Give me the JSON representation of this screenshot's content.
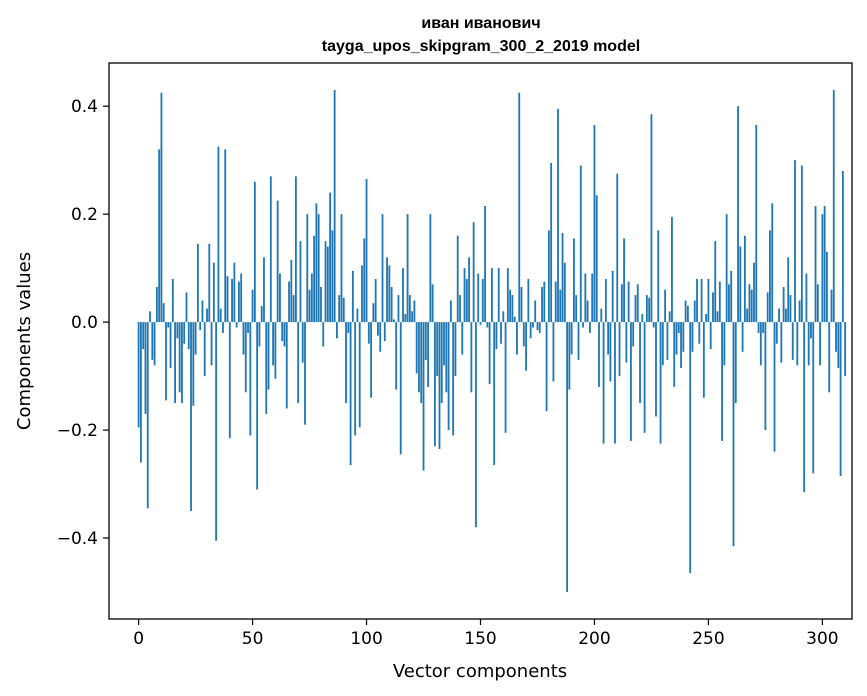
{
  "chart_data": {
    "type": "bar",
    "title": "иван иванович",
    "subtitle": "tayga_upos_skipgram_300_2_2019 model",
    "xlabel": "Vector components",
    "ylabel": "Components values",
    "xlim": [
      -13,
      313
    ],
    "ylim": [
      -0.55,
      0.48
    ],
    "x_ticks": [
      0,
      50,
      100,
      150,
      200,
      250,
      300
    ],
    "x_tick_labels": [
      "0",
      "50",
      "100",
      "150",
      "200",
      "250",
      "300"
    ],
    "y_ticks": [
      -0.4,
      -0.2,
      0.0,
      0.2,
      0.4
    ],
    "y_tick_labels": [
      "−0.4",
      "−0.2",
      "0.0",
      "0.2",
      "0.4"
    ],
    "bar_color": "#1f77b4",
    "values": [
      -0.195,
      -0.26,
      -0.05,
      -0.17,
      -0.345,
      0.02,
      -0.07,
      -0.08,
      0.065,
      0.32,
      0.425,
      0.035,
      -0.145,
      -0.01,
      -0.085,
      0.08,
      -0.15,
      -0.03,
      -0.13,
      -0.15,
      -0.04,
      0.055,
      -0.05,
      -0.35,
      -0.155,
      -0.06,
      0.145,
      -0.015,
      0.04,
      -0.1,
      0.025,
      0.145,
      -0.08,
      0.11,
      -0.405,
      0.325,
      0.025,
      -0.02,
      0.32,
      0.085,
      -0.215,
      0.08,
      0.11,
      -0.01,
      0.075,
      0.09,
      -0.06,
      -0.13,
      -0.02,
      -0.21,
      0.06,
      0.26,
      -0.31,
      -0.045,
      0.03,
      0.12,
      -0.17,
      -0.125,
      0.27,
      -0.08,
      -0.105,
      0.225,
      0.09,
      -0.035,
      -0.045,
      -0.16,
      0.075,
      0.115,
      0.05,
      0.27,
      -0.15,
      0.15,
      -0.075,
      -0.19,
      0.2,
      0.06,
      0.09,
      0.16,
      0.22,
      0.2,
      0.065,
      -0.045,
      0.15,
      0.14,
      0.24,
      0.17,
      0.43,
      -0.03,
      0.05,
      0.2,
      0.045,
      -0.15,
      -0.02,
      -0.265,
      0.095,
      -0.21,
      0.025,
      -0.195,
      0.105,
      0.155,
      0.265,
      -0.04,
      -0.14,
      0.035,
      0.08,
      -0.025,
      -0.055,
      0.2,
      -0.035,
      0.12,
      0.105,
      0.065,
      0.005,
      -0.125,
      0.05,
      -0.245,
      0.1,
      0.015,
      0.2,
      0.05,
      0.02,
      0.04,
      -0.095,
      -0.13,
      -0.15,
      -0.275,
      -0.07,
      -0.12,
      0.2,
      0.07,
      -0.23,
      -0.1,
      -0.235,
      -0.15,
      -0.08,
      -0.13,
      -0.2,
      0.04,
      -0.21,
      -0.1,
      0.16,
      0.05,
      -0.06,
      0.1,
      0.08,
      0.12,
      -0.13,
      0.185,
      -0.38,
      0.09,
      -0.005,
      0.08,
      0.215,
      -0.01,
      -0.115,
      0.1,
      -0.265,
      -0.05,
      0.1,
      -0.04,
      0.02,
      -0.205,
      0.1,
      0.06,
      0.05,
      0.01,
      -0.06,
      0.425,
      0.065,
      -0.045,
      -0.09,
      0.08,
      -0.03,
      -0.01,
      0.04,
      -0.015,
      -0.02,
      0.065,
      0.075,
      -0.165,
      0.17,
      0.295,
      -0.11,
      0.075,
      0.395,
      0.06,
      0.165,
      0.11,
      -0.5,
      -0.125,
      -0.06,
      0.155,
      0.05,
      -0.07,
      0.29,
      -0.01,
      0.09,
      0.04,
      -0.02,
      0.09,
      0.365,
      0.235,
      -0.12,
      0.025,
      -0.225,
      0.08,
      -0.06,
      -0.11,
      0.095,
      -0.225,
      0.275,
      -0.1,
      0.07,
      0.155,
      -0.075,
      0.075,
      -0.22,
      -0.045,
      0.05,
      0.07,
      -0.15,
      0.015,
      -0.205,
      0.05,
      0.045,
      0.385,
      -0.01,
      -0.175,
      0.17,
      -0.225,
      -0.08,
      0.06,
      -0.07,
      0.02,
      0.195,
      -0.12,
      -0.06,
      -0.02,
      -0.085,
      -0.055,
      0.04,
      0.03,
      -0.465,
      -0.055,
      0.04,
      0.08,
      -0.04,
      0.08,
      -0.14,
      0.015,
      0.08,
      -0.05,
      0.055,
      0.15,
      0.02,
      0.075,
      -0.22,
      -0.08,
      0.2,
      0.07,
      0.095,
      -0.415,
      -0.15,
      0.4,
      0.14,
      -0.055,
      0.16,
      0.025,
      0.07,
      0.06,
      0.11,
      0.365,
      -0.02,
      -0.08,
      -0.02,
      -0.2,
      0.055,
      0.17,
      0.22,
      -0.24,
      -0.04,
      0.025,
      -0.075,
      0.065,
      0.025,
      0.12,
      0.05,
      -0.07,
      0.3,
      -0.08,
      0.04,
      0.29,
      -0.315,
      0.09,
      -0.08,
      -0.03,
      -0.28,
      0.215,
      0.07,
      -0.08,
      0.2,
      0.215,
      0.13,
      -0.13,
      0.06,
      0.43,
      -0.055,
      -0.085,
      -0.285,
      0.28,
      -0.1
    ]
  }
}
